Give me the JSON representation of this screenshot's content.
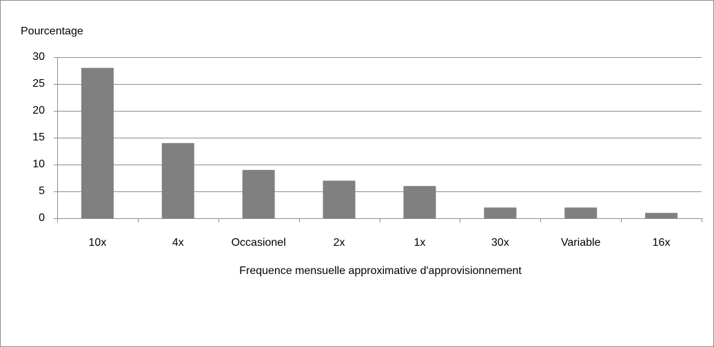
{
  "chart_data": {
    "type": "bar",
    "y_label": "Pourcentage",
    "x_label": "Frequence mensuelle approximative d'approvisionnement",
    "categories": [
      "10x",
      "4x",
      "Occasionel",
      "2x",
      "1x",
      "30x",
      "Variable",
      "16x"
    ],
    "values": [
      28,
      14,
      9,
      7,
      6,
      2,
      2,
      1
    ],
    "color": "#808080",
    "ylim": [
      0,
      30
    ],
    "yticks": [
      0,
      5,
      10,
      15,
      20,
      25,
      30
    ],
    "grid": true
  }
}
